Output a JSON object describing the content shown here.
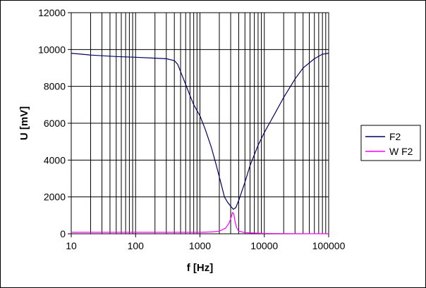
{
  "chart_data": {
    "type": "line",
    "xscale": "log",
    "xlim": [
      10,
      100000
    ],
    "ylim": [
      0,
      12000
    ],
    "xlabel": "f [Hz]",
    "ylabel": "U [mV]",
    "xticks": [
      10,
      100,
      1000,
      10000,
      100000
    ],
    "xtick_labels": [
      "10",
      "100",
      "1000",
      "10000",
      "100000"
    ],
    "yticks": [
      0,
      2000,
      4000,
      6000,
      8000,
      10000,
      12000
    ],
    "ytick_labels": [
      "0",
      "2000",
      "4000",
      "6000",
      "8000",
      "10000",
      "12000"
    ],
    "grid": true,
    "legend_position": "right",
    "series": [
      {
        "name": "F2",
        "color": "#000066",
        "points": [
          [
            10,
            9800
          ],
          [
            20,
            9700
          ],
          [
            50,
            9620
          ],
          [
            100,
            9580
          ],
          [
            200,
            9530
          ],
          [
            300,
            9500
          ],
          [
            400,
            9400
          ],
          [
            450,
            9200
          ],
          [
            500,
            8800
          ],
          [
            600,
            8100
          ],
          [
            700,
            7500
          ],
          [
            800,
            7000
          ],
          [
            1000,
            6400
          ],
          [
            1200,
            5700
          ],
          [
            1500,
            4700
          ],
          [
            1800,
            3700
          ],
          [
            2100,
            2800
          ],
          [
            2400,
            2000
          ],
          [
            2700,
            1700
          ],
          [
            3000,
            1500
          ],
          [
            3300,
            1330
          ],
          [
            3600,
            1420
          ],
          [
            4000,
            1800
          ],
          [
            5000,
            2800
          ],
          [
            6000,
            3700
          ],
          [
            8000,
            4800
          ],
          [
            10000,
            5500
          ],
          [
            15000,
            6600
          ],
          [
            20000,
            7400
          ],
          [
            30000,
            8400
          ],
          [
            40000,
            9000
          ],
          [
            60000,
            9500
          ],
          [
            80000,
            9750
          ],
          [
            100000,
            9800
          ]
        ]
      },
      {
        "name": "W F2",
        "color": "#ff00ff",
        "points": [
          [
            10,
            80
          ],
          [
            100,
            80
          ],
          [
            500,
            80
          ],
          [
            1000,
            80
          ],
          [
            1500,
            100
          ],
          [
            2000,
            140
          ],
          [
            2500,
            300
          ],
          [
            2800,
            550
          ],
          [
            3000,
            800
          ],
          [
            3200,
            1150
          ],
          [
            3350,
            1100
          ],
          [
            3500,
            700
          ],
          [
            3700,
            350
          ],
          [
            4000,
            150
          ],
          [
            5000,
            60
          ],
          [
            10000,
            20
          ],
          [
            20000,
            10
          ],
          [
            100000,
            0
          ]
        ]
      }
    ]
  }
}
